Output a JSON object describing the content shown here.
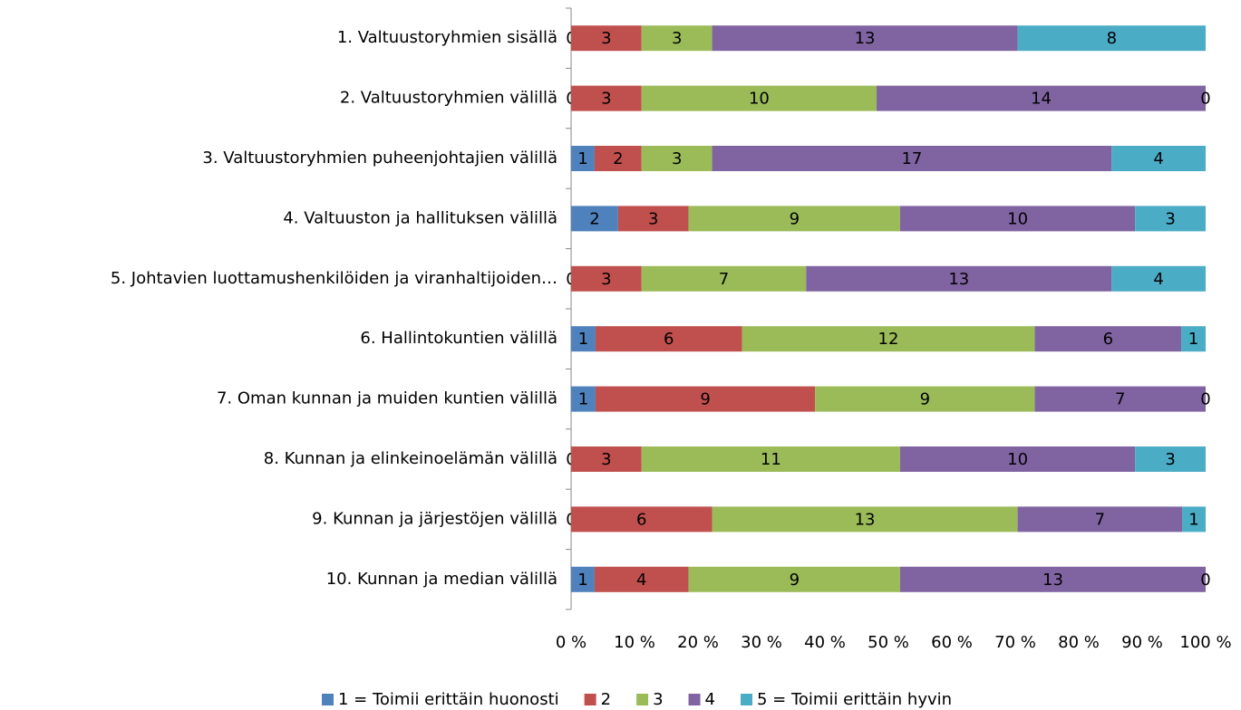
{
  "chart_data": {
    "type": "bar",
    "orientation": "horizontal",
    "stacking": "percent",
    "categories": [
      "1. Valtuustoryhmien sisällä",
      "2. Valtuustoryhmien välillä",
      "3. Valtuustoryhmien puheenjohtajien välillä",
      "4. Valtuuston ja hallituksen välillä",
      "5. Johtavien luottamushenkilöiden ja viranhaltijoiden…",
      "6. Hallintokuntien välillä",
      "7. Oman kunnan ja muiden kuntien välillä",
      "8. Kunnan ja elinkeinoelämän välillä",
      "9. Kunnan ja järjestöjen välillä",
      "10. Kunnan ja median välillä"
    ],
    "series": [
      {
        "name": "1 = Toimii erittäin huonosti",
        "color": "#4f81bd",
        "values": [
          0,
          0,
          1,
          2,
          0,
          1,
          1,
          0,
          0,
          1
        ]
      },
      {
        "name": "2",
        "color": "#c0504d",
        "values": [
          3,
          3,
          2,
          3,
          3,
          6,
          9,
          3,
          6,
          4
        ]
      },
      {
        "name": "3",
        "color": "#9bbb59",
        "values": [
          3,
          10,
          3,
          9,
          7,
          12,
          9,
          11,
          13,
          9
        ]
      },
      {
        "name": "4",
        "color": "#8064a2",
        "values": [
          13,
          14,
          17,
          10,
          13,
          6,
          7,
          10,
          7,
          13
        ]
      },
      {
        "name": "5 = Toimii erittäin hyvin",
        "color": "#4bacc6",
        "values": [
          8,
          0,
          4,
          3,
          4,
          1,
          0,
          3,
          1,
          0
        ]
      }
    ],
    "xlim": [
      0,
      100
    ],
    "xticks": [
      {
        "value": 0,
        "label": "0 %"
      },
      {
        "value": 10,
        "label": "10 %"
      },
      {
        "value": 20,
        "label": "20 %"
      },
      {
        "value": 30,
        "label": "30 %"
      },
      {
        "value": 40,
        "label": "40 %"
      },
      {
        "value": 50,
        "label": "50 %"
      },
      {
        "value": 60,
        "label": "60 %"
      },
      {
        "value": 70,
        "label": "70 %"
      },
      {
        "value": 80,
        "label": "80 %"
      },
      {
        "value": 90,
        "label": "90 %"
      },
      {
        "value": 100,
        "label": "100 %"
      }
    ],
    "legend": "bottom"
  }
}
